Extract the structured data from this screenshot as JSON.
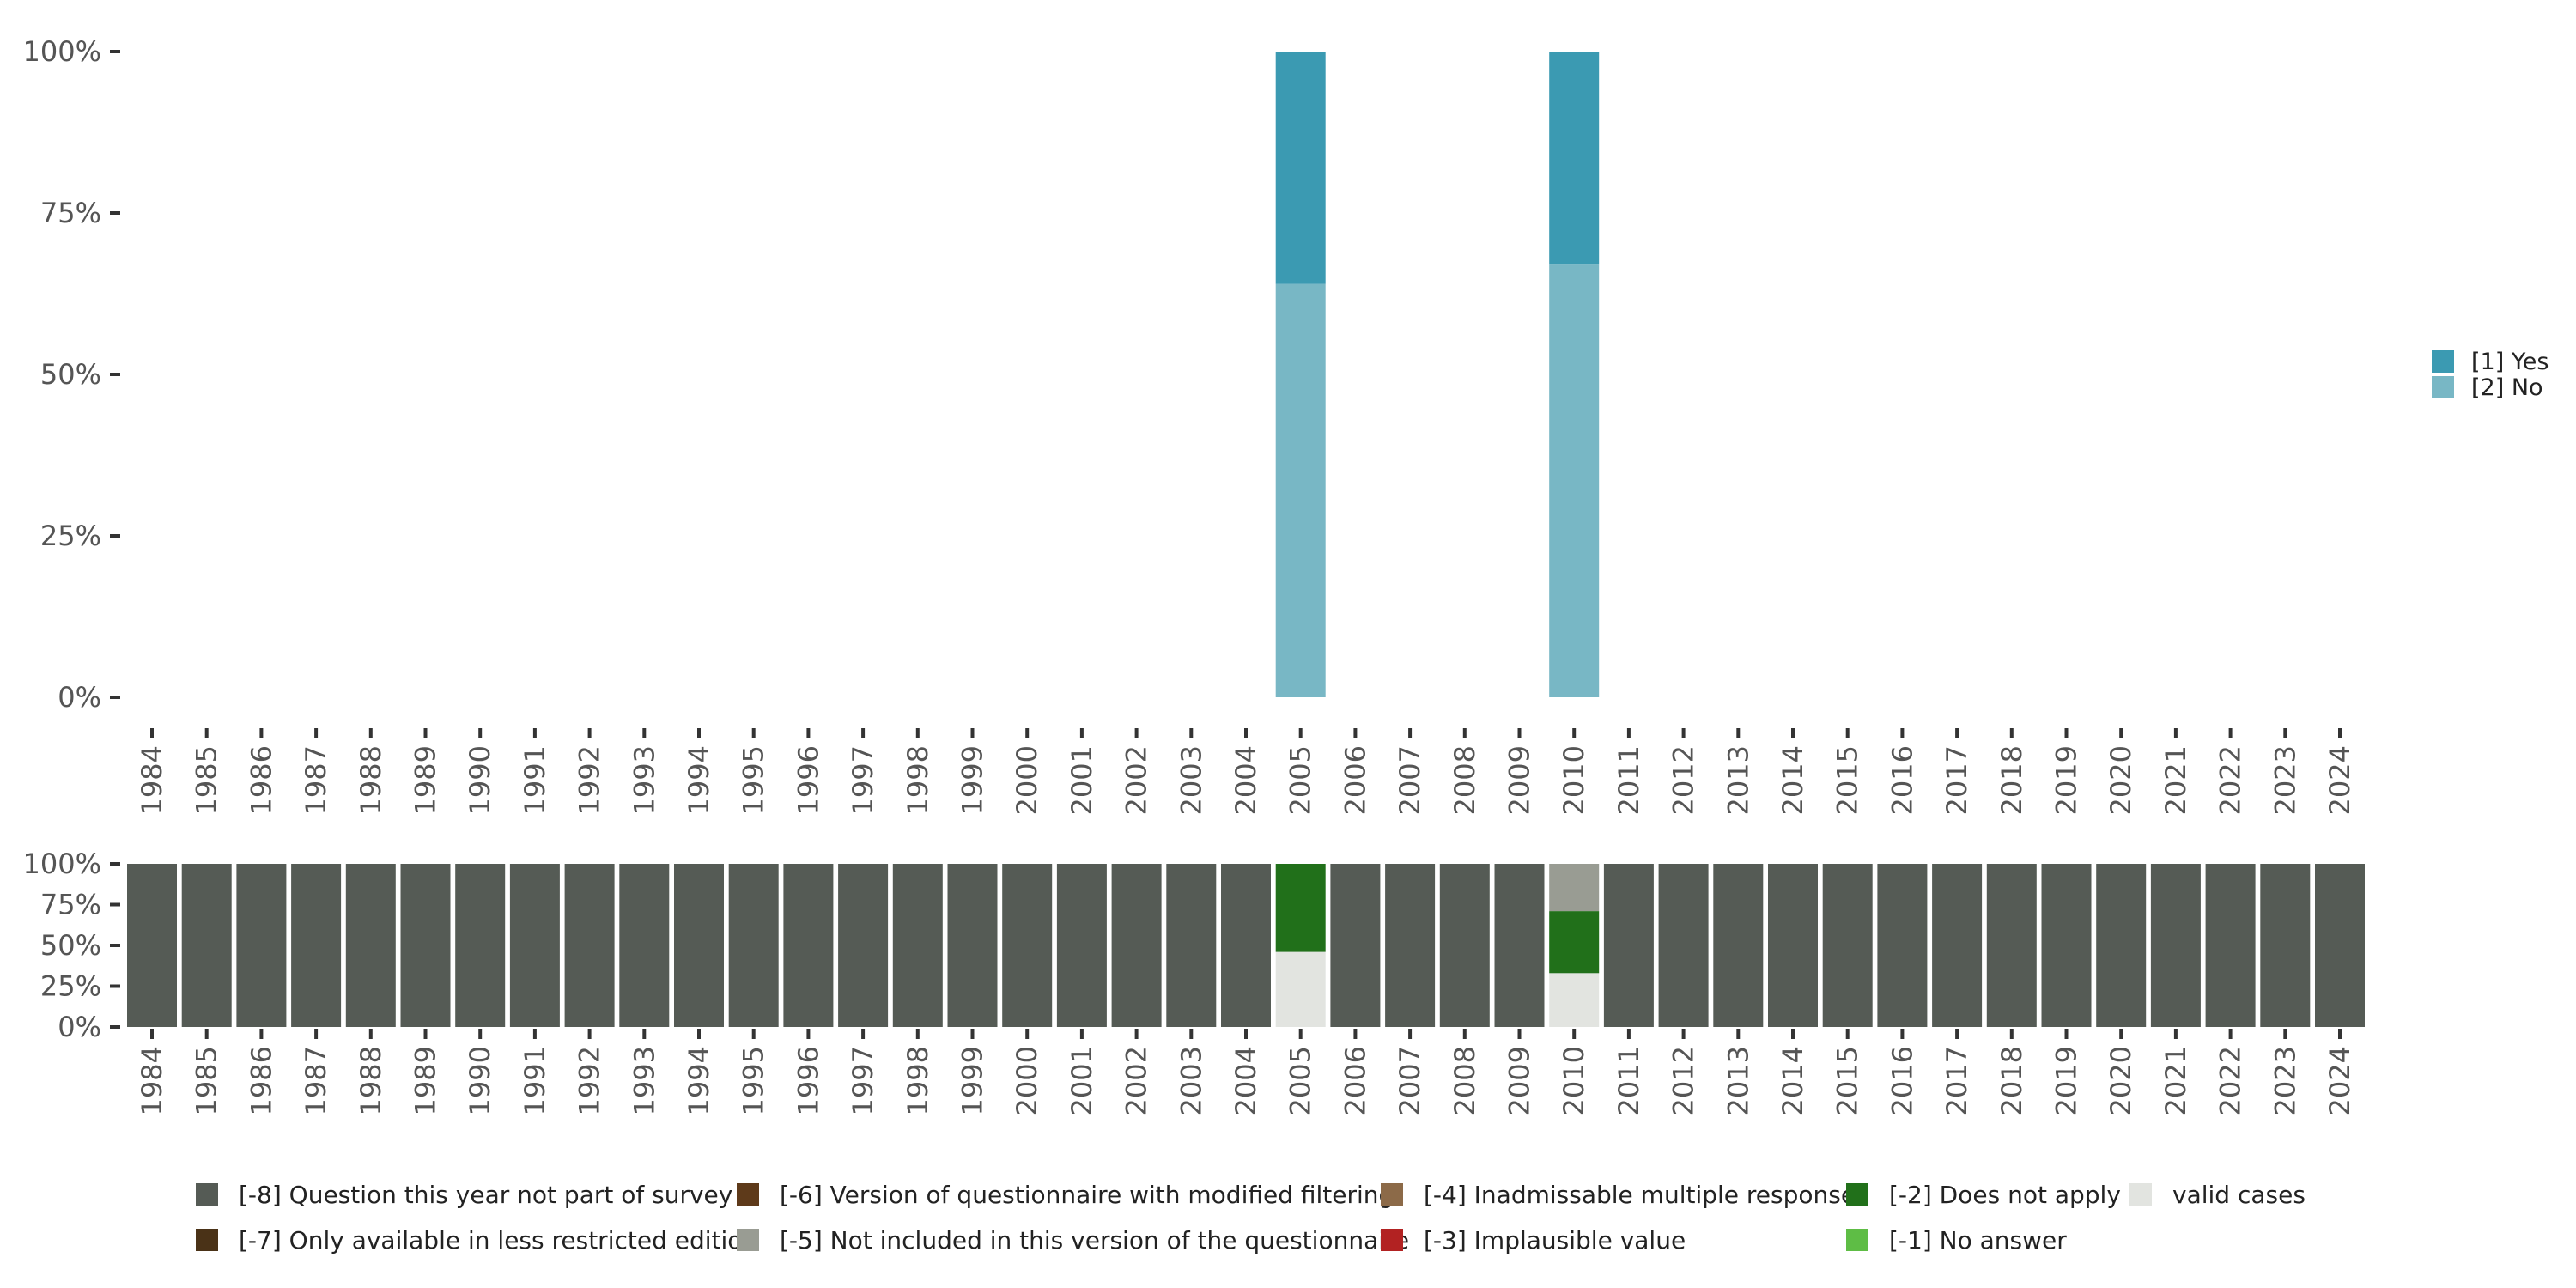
{
  "chart_data": [
    {
      "name": "response-distribution",
      "type": "bar",
      "stacked": true,
      "title": "",
      "xlabel": "",
      "ylabel": "",
      "ylim": [
        0,
        100
      ],
      "y_ticks": [
        0,
        25,
        50,
        75,
        100
      ],
      "y_tick_labels": [
        "0%",
        "25%",
        "50%",
        "75%",
        "100%"
      ],
      "categories": [
        "1984",
        "1985",
        "1986",
        "1987",
        "1988",
        "1989",
        "1990",
        "1991",
        "1992",
        "1993",
        "1994",
        "1995",
        "1996",
        "1997",
        "1998",
        "1999",
        "2000",
        "2001",
        "2002",
        "2003",
        "2004",
        "2005",
        "2006",
        "2007",
        "2008",
        "2009",
        "2010",
        "2011",
        "2012",
        "2013",
        "2014",
        "2015",
        "2016",
        "2017",
        "2018",
        "2019",
        "2020",
        "2021",
        "2022",
        "2023",
        "2024"
      ],
      "series": [
        {
          "name": "[2] No",
          "color": "#78b7c5",
          "values": [
            null,
            null,
            null,
            null,
            null,
            null,
            null,
            null,
            null,
            null,
            null,
            null,
            null,
            null,
            null,
            null,
            null,
            null,
            null,
            null,
            null,
            64,
            null,
            null,
            null,
            null,
            67,
            null,
            null,
            null,
            null,
            null,
            null,
            null,
            null,
            null,
            null,
            null,
            null,
            null,
            null
          ]
        },
        {
          "name": "[1] Yes",
          "color": "#3b9ab2",
          "values": [
            null,
            null,
            null,
            null,
            null,
            null,
            null,
            null,
            null,
            null,
            null,
            null,
            null,
            null,
            null,
            null,
            null,
            null,
            null,
            null,
            null,
            36,
            null,
            null,
            null,
            null,
            33,
            null,
            null,
            null,
            null,
            null,
            null,
            null,
            null,
            null,
            null,
            null,
            null,
            null,
            null
          ]
        }
      ],
      "legend": {
        "position": "right",
        "items": [
          {
            "label": "[1] Yes",
            "color": "#3b9ab2"
          },
          {
            "label": "[2] No",
            "color": "#78b7c5"
          }
        ]
      }
    },
    {
      "name": "missing-codes",
      "type": "bar",
      "stacked": true,
      "title": "",
      "xlabel": "",
      "ylabel": "",
      "ylim": [
        0,
        100
      ],
      "y_ticks": [
        0,
        25,
        50,
        75,
        100
      ],
      "y_tick_labels": [
        "0%",
        "25%",
        "50%",
        "75%",
        "100%"
      ],
      "categories": [
        "1984",
        "1985",
        "1986",
        "1987",
        "1988",
        "1989",
        "1990",
        "1991",
        "1992",
        "1993",
        "1994",
        "1995",
        "1996",
        "1997",
        "1998",
        "1999",
        "2000",
        "2001",
        "2002",
        "2003",
        "2004",
        "2005",
        "2006",
        "2007",
        "2008",
        "2009",
        "2010",
        "2011",
        "2012",
        "2013",
        "2014",
        "2015",
        "2016",
        "2017",
        "2018",
        "2019",
        "2020",
        "2021",
        "2022",
        "2023",
        "2024"
      ],
      "series": [
        {
          "name": "valid cases",
          "color": "#e2e4e0",
          "values": [
            0,
            0,
            0,
            0,
            0,
            0,
            0,
            0,
            0,
            0,
            0,
            0,
            0,
            0,
            0,
            0,
            0,
            0,
            0,
            0,
            0,
            46,
            0,
            0,
            0,
            0,
            33,
            0,
            0,
            0,
            0,
            0,
            0,
            0,
            0,
            0,
            0,
            0,
            0,
            0,
            0
          ]
        },
        {
          "name": "[-2] Does not apply",
          "color": "#21701a",
          "values": [
            0,
            0,
            0,
            0,
            0,
            0,
            0,
            0,
            0,
            0,
            0,
            0,
            0,
            0,
            0,
            0,
            0,
            0,
            0,
            0,
            0,
            54,
            0,
            0,
            0,
            0,
            38,
            0,
            0,
            0,
            0,
            0,
            0,
            0,
            0,
            0,
            0,
            0,
            0,
            0,
            0
          ]
        },
        {
          "name": "[-5] Not included in this version of the questionnaire",
          "color": "#999c93",
          "values": [
            0,
            0,
            0,
            0,
            0,
            0,
            0,
            0,
            0,
            0,
            0,
            0,
            0,
            0,
            0,
            0,
            0,
            0,
            0,
            0,
            0,
            0,
            0,
            0,
            0,
            0,
            29,
            0,
            0,
            0,
            0,
            0,
            0,
            0,
            0,
            0,
            0,
            0,
            0,
            0,
            0
          ]
        },
        {
          "name": "[-8] Question this year not part of survey",
          "color": "#555b55",
          "values": [
            100,
            100,
            100,
            100,
            100,
            100,
            100,
            100,
            100,
            100,
            100,
            100,
            100,
            100,
            100,
            100,
            100,
            100,
            100,
            100,
            100,
            0,
            100,
            100,
            100,
            100,
            0,
            100,
            100,
            100,
            100,
            100,
            100,
            100,
            100,
            100,
            100,
            100,
            100,
            100,
            100
          ]
        }
      ],
      "legend": {
        "position": "bottom",
        "items": [
          {
            "label": "[-8] Question this year not part of survey",
            "color": "#555b55"
          },
          {
            "label": "[-7] Only available in less restricted edition",
            "color": "#4a3217"
          },
          {
            "label": "[-6] Version of questionnaire with modified filtering",
            "color": "#5e3a1a"
          },
          {
            "label": "[-5] Not included in this version of the questionnaire",
            "color": "#999c93"
          },
          {
            "label": "[-4] Inadmissable multiple response",
            "color": "#8c6a48"
          },
          {
            "label": "[-3] Implausible value",
            "color": "#b22222"
          },
          {
            "label": "[-2] Does not apply",
            "color": "#21701a"
          },
          {
            "label": "[-1] No answer",
            "color": "#5ebd45"
          },
          {
            "label": "valid cases",
            "color": "#e2e4e0"
          }
        ]
      }
    }
  ]
}
